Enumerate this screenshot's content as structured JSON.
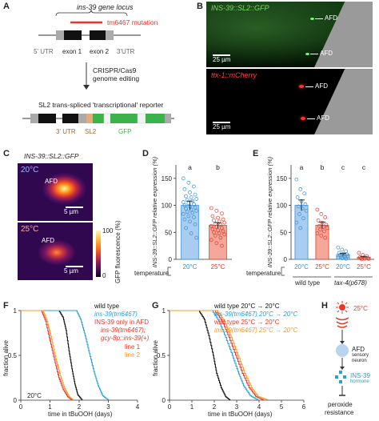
{
  "panels": {
    "A": {
      "letter": "A",
      "locus_title": "ins-39 gene locus",
      "mutation": "tm6467 mutation",
      "utr5": "5' UTR",
      "exon1": "exon 1",
      "exon2": "exon 2",
      "utr3": "3'UTR",
      "crispr1": "CRISPR/Cas9",
      "crispr2": "genome editing",
      "reporter": "SL2 trans-spliced 'transcriptional' reporter",
      "utr3b": "3' UTR",
      "sl2": "SL2",
      "gfp": "GFP"
    },
    "B": {
      "letter": "B",
      "top_title": "INS-39::SL2::GFP",
      "afd1": "AFD",
      "afd2": "AFD",
      "scale_top": "25 µm",
      "bottom_title": "ttx-1::mCherry",
      "afd3": "AFD",
      "afd4": "AFD",
      "scale_bottom": "25 µm"
    },
    "C": {
      "letter": "C",
      "title": "INS-39::SL2::GFP",
      "temp1": "20°C",
      "temp2": "25°C",
      "afd_a": "AFD",
      "afd_b": "AFD",
      "scale1": "5 µm",
      "scale2": "5 µm",
      "cb_max": "100",
      "cb_min": "0",
      "cb_label": "GFP fluorescence (%)"
    },
    "D": {
      "letter": "D",
      "temperature_label": "temperature"
    },
    "E": {
      "letter": "E",
      "temperature_label": "temperature",
      "group1": "wild type",
      "group2": "tax-4(p678)"
    },
    "F": {
      "letter": "F",
      "ylabel": "fraction alive",
      "xlabel": "time in tBuOOH (days)",
      "temp": "20°C",
      "legend": [
        "wild type",
        "ins-39(tm6467)",
        "INS-39 only in AFD",
        "ins-39(tm6467);",
        "gcy-8p::ins-39(+)",
        "line 1",
        "line 2"
      ]
    },
    "G": {
      "letter": "G",
      "ylabel": "fraction alive",
      "xlabel": "time in tBuOOH (days)",
      "legend": [
        "wild type 20°C → 20°C",
        "ins-39(tm6467) 20°C → 20°C",
        "wild type 25°C → 20°C",
        "ins-39(tm6467) 25°C → 20°C"
      ]
    },
    "H": {
      "letter": "H",
      "temp": "25°C",
      "afd": "AFD",
      "sensory": "sensory",
      "neuron": "neuron",
      "ins": "INS-39",
      "hormone": "hormone",
      "peroxide": "peroxide",
      "resistance": "resistance"
    }
  },
  "chart_data": [
    {
      "id": "D",
      "type": "bar",
      "ylabel": "INS-39::SL2::GFP relative expression (%)",
      "ylim": [
        0,
        175
      ],
      "yticks": [
        0,
        50,
        100,
        150
      ],
      "categories": [
        "20°C",
        "25°C"
      ],
      "values": [
        100,
        63
      ],
      "errors": [
        8,
        5
      ],
      "letters": [
        "a",
        "b"
      ],
      "colors": [
        "#3a8fd0",
        "#e03a2a"
      ],
      "fill_colors": [
        "#a9cdf0",
        "#f5a89a"
      ],
      "points": [
        [
          150,
          142,
          135,
          130,
          124,
          120,
          117,
          115,
          112,
          110,
          108,
          106,
          104,
          102,
          100,
          98,
          96,
          94,
          92,
          90,
          88,
          86,
          84,
          80,
          78,
          74,
          70,
          65,
          58,
          48,
          40
        ],
        [
          95,
          90,
          85,
          80,
          77,
          74,
          72,
          70,
          68,
          66,
          64,
          62,
          60,
          58,
          56,
          54,
          52,
          50,
          48,
          46,
          44,
          40,
          36,
          30,
          25
        ]
      ]
    },
    {
      "id": "E",
      "type": "bar",
      "ylabel": "INS-39::SL2::GFP relative expression (%)",
      "ylim": [
        0,
        175
      ],
      "yticks": [
        0,
        50,
        100,
        150
      ],
      "categories": [
        "20°C",
        "25°C",
        "20°C",
        "25°C"
      ],
      "values": [
        100,
        63,
        9,
        4
      ],
      "errors": [
        10,
        6,
        2,
        1.5
      ],
      "letters": [
        "a",
        "b",
        "c",
        "c"
      ],
      "colors": [
        "#3a8fd0",
        "#e03a2a",
        "#3a8fd0",
        "#e03a2a"
      ],
      "fill_colors": [
        "#a9cdf0",
        "#f5a89a",
        "#a9cdf0",
        "#f5a89a"
      ],
      "points": [
        [
          148,
          130,
          122,
          115,
          108,
          102,
          98,
          94,
          90,
          84,
          76,
          68,
          58
        ],
        [
          92,
          84,
          78,
          72,
          68,
          64,
          62,
          60,
          58,
          55,
          52,
          48,
          44,
          40
        ],
        [
          22,
          18,
          15,
          12,
          10,
          9,
          8,
          7,
          6,
          5,
          4,
          3,
          2,
          1
        ],
        [
          12,
          8,
          6,
          4,
          3,
          2,
          2,
          1,
          1,
          0
        ]
      ]
    },
    {
      "id": "F",
      "type": "line",
      "xlabel": "time in tBuOOH (days)",
      "ylabel": "fraction alive",
      "xlim": [
        0,
        4
      ],
      "ylim": [
        0,
        1
      ],
      "xticks": [
        0,
        1,
        2,
        3,
        4
      ],
      "yticks": [
        0,
        0.5,
        1
      ],
      "series": [
        {
          "name": "wild type",
          "color": "#111111",
          "x": [
            0,
            1.3,
            1.45,
            1.55,
            1.65,
            1.75,
            1.85,
            1.95,
            2.1
          ],
          "y": [
            1,
            1,
            0.92,
            0.78,
            0.55,
            0.35,
            0.18,
            0.06,
            0
          ]
        },
        {
          "name": "ins-39(tm6467)",
          "color": "#2b9fd8",
          "x": [
            0,
            1.9,
            2.05,
            2.2,
            2.35,
            2.5,
            2.65,
            2.8,
            3.0
          ],
          "y": [
            1,
            1,
            0.9,
            0.72,
            0.52,
            0.32,
            0.16,
            0.05,
            0
          ]
        },
        {
          "name": "line 1",
          "color": "#e5382a",
          "x": [
            0,
            0.7,
            0.85,
            1.0,
            1.15,
            1.3,
            1.45,
            1.6,
            1.75
          ],
          "y": [
            1,
            1,
            0.88,
            0.66,
            0.45,
            0.25,
            0.12,
            0.04,
            0
          ]
        },
        {
          "name": "line 2",
          "color": "#f29a2e",
          "x": [
            0,
            0.75,
            0.9,
            1.05,
            1.2,
            1.35,
            1.5,
            1.65,
            1.8
          ],
          "y": [
            1,
            1,
            0.88,
            0.68,
            0.46,
            0.27,
            0.13,
            0.04,
            0
          ]
        }
      ]
    },
    {
      "id": "G",
      "type": "line",
      "xlabel": "time in tBuOOH (days)",
      "ylabel": "fraction alive",
      "xlim": [
        0,
        6
      ],
      "ylim": [
        0,
        1
      ],
      "xticks": [
        0,
        1,
        2,
        3,
        4,
        5,
        6
      ],
      "yticks": [
        0,
        0.5,
        1
      ],
      "series": [
        {
          "name": "wild type 20°C → 20°C",
          "color": "#111111",
          "x": [
            0,
            1.3,
            1.55,
            1.75,
            1.95,
            2.1,
            2.3,
            2.5,
            2.7
          ],
          "y": [
            1,
            1,
            0.9,
            0.72,
            0.5,
            0.3,
            0.14,
            0.04,
            0
          ]
        },
        {
          "name": "ins-39(tm6467) 20°C → 20°C",
          "color": "#2b9fd8",
          "x": [
            0,
            1.9,
            2.2,
            2.5,
            2.8,
            3.05,
            3.3,
            3.6,
            3.95
          ],
          "y": [
            1,
            1,
            0.88,
            0.7,
            0.5,
            0.32,
            0.16,
            0.05,
            0
          ]
        },
        {
          "name": "wild type 25°C → 20°C",
          "color": "#e5382a",
          "x": [
            0,
            2.0,
            2.35,
            2.65,
            2.95,
            3.25,
            3.55,
            3.85,
            4.2
          ],
          "y": [
            1,
            1,
            0.88,
            0.7,
            0.5,
            0.3,
            0.14,
            0.04,
            0
          ]
        },
        {
          "name": "ins-39(tm6467) 25°C → 20°C",
          "color": "#f29a2e",
          "x": [
            0,
            2.1,
            2.45,
            2.75,
            3.05,
            3.35,
            3.65,
            3.95,
            4.4
          ],
          "y": [
            1,
            1,
            0.88,
            0.7,
            0.5,
            0.3,
            0.14,
            0.04,
            0
          ]
        }
      ]
    }
  ]
}
